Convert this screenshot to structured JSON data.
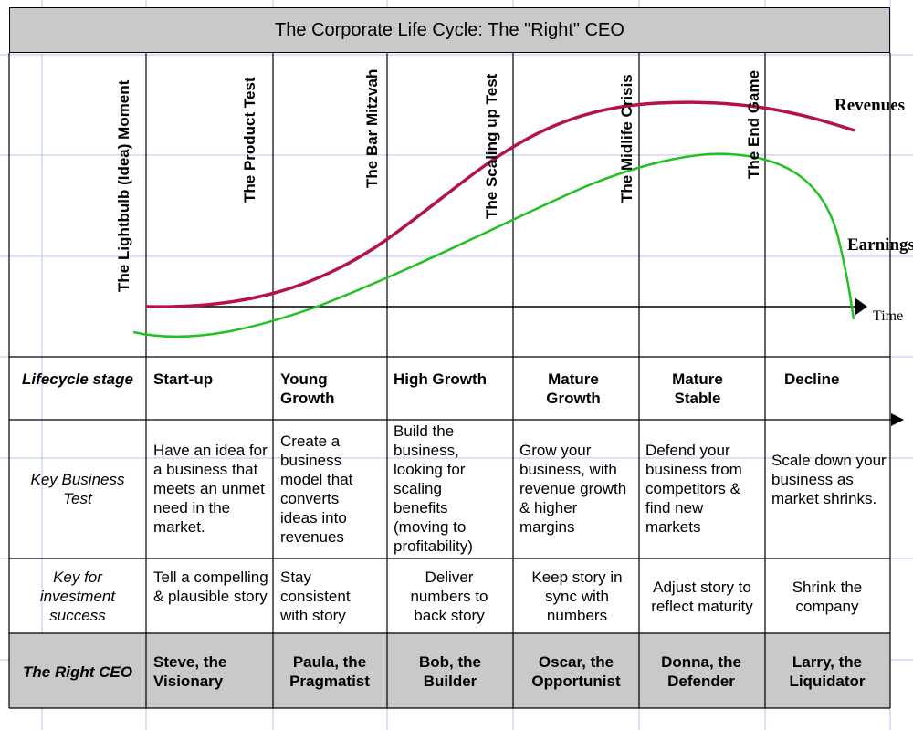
{
  "title": "The Corporate Life Cycle: The \"Right\" CEO",
  "milestones": [
    "The Lightbulb (Idea) Moment",
    "The Product Test",
    "The Bar Mitzvah",
    "The Scaling up Test",
    "The Midlife Crisis",
    "The End Game"
  ],
  "curves": {
    "revenues_label": "Revenues",
    "earnings_label": "Earnings",
    "time_label": "Time",
    "revenues_color": "#b5124a",
    "earnings_color": "#22c022"
  },
  "table": {
    "row_headers": {
      "stage": "Lifecycle stage",
      "test": "Key Business Test",
      "investment": "Key for investment success",
      "ceo": "The Right CEO"
    },
    "stages": [
      {
        "stage": "Start-up",
        "test": "Have an idea for a business that meets an unmet need in the market.",
        "investment": "Tell a compelling & plausible story",
        "ceo": "Steve, the Visionary"
      },
      {
        "stage": "Young Growth",
        "test": "Create a business model that converts ideas into revenues",
        "investment": "Stay consistent with story",
        "ceo": "Paula, the Pragmatist"
      },
      {
        "stage": "High Growth",
        "test": "Build the business, looking for scaling benefits (moving to profitability)",
        "investment": "Deliver numbers to back story",
        "ceo": "Bob, the Builder"
      },
      {
        "stage": "Mature Growth",
        "test": "Grow your business, with revenue growth & higher margins",
        "investment": "Keep story in sync with numbers",
        "ceo": "Oscar, the Opportunist"
      },
      {
        "stage": "Mature Stable",
        "test": "Defend your business from competitors & find new markets",
        "investment": "Adjust story to reflect maturity",
        "ceo": "Donna, the Defender"
      },
      {
        "stage": "Decline",
        "test": "Scale down your business as market shrinks.",
        "investment": "Shrink the company",
        "ceo": "Larry, the Liquidator"
      }
    ]
  }
}
